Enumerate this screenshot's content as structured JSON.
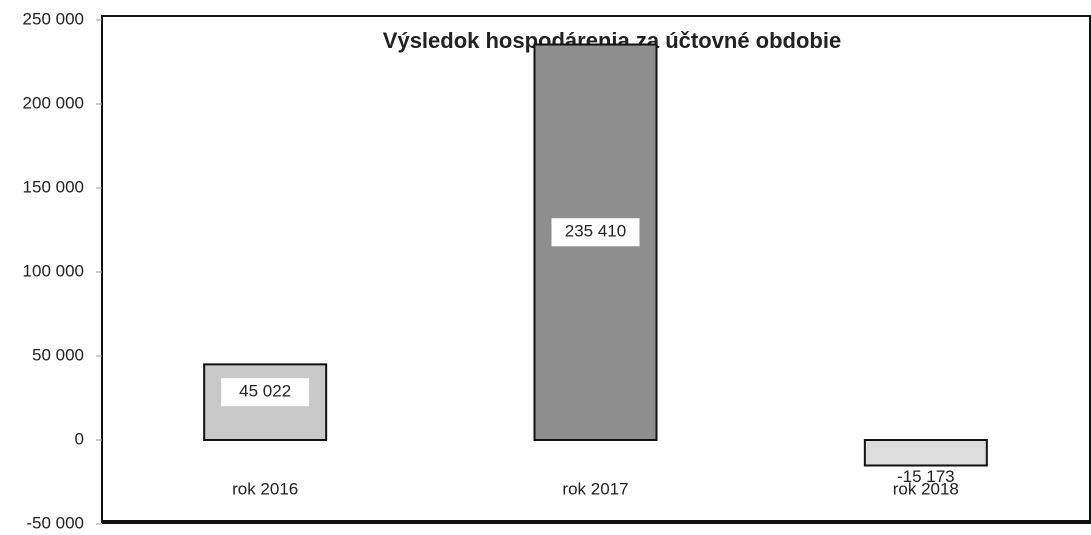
{
  "chart_data": {
    "type": "bar",
    "title": "Výsledok hospodárenia za účtovné obdobie",
    "categories": [
      "rok 2016",
      "rok 2017",
      "rok 2018"
    ],
    "values": [
      45022,
      235410,
      -15173
    ],
    "value_labels": [
      "45 022",
      "235 410",
      "-15 173"
    ],
    "colors": [
      "#c9c9c9",
      "#8e8e8e",
      "#dcdcdc"
    ],
    "ylim": [
      -50000,
      250000
    ],
    "yticks": [
      {
        "value": -50000,
        "label": "-50 000"
      },
      0,
      {
        "value": 50000,
        "label": "50 000"
      },
      {
        "value": 100000,
        "label": "100 000"
      },
      {
        "value": 150000,
        "label": "150 000"
      },
      {
        "value": 200000,
        "label": "200 000"
      },
      {
        "value": 250000,
        "label": "250 000"
      }
    ]
  }
}
